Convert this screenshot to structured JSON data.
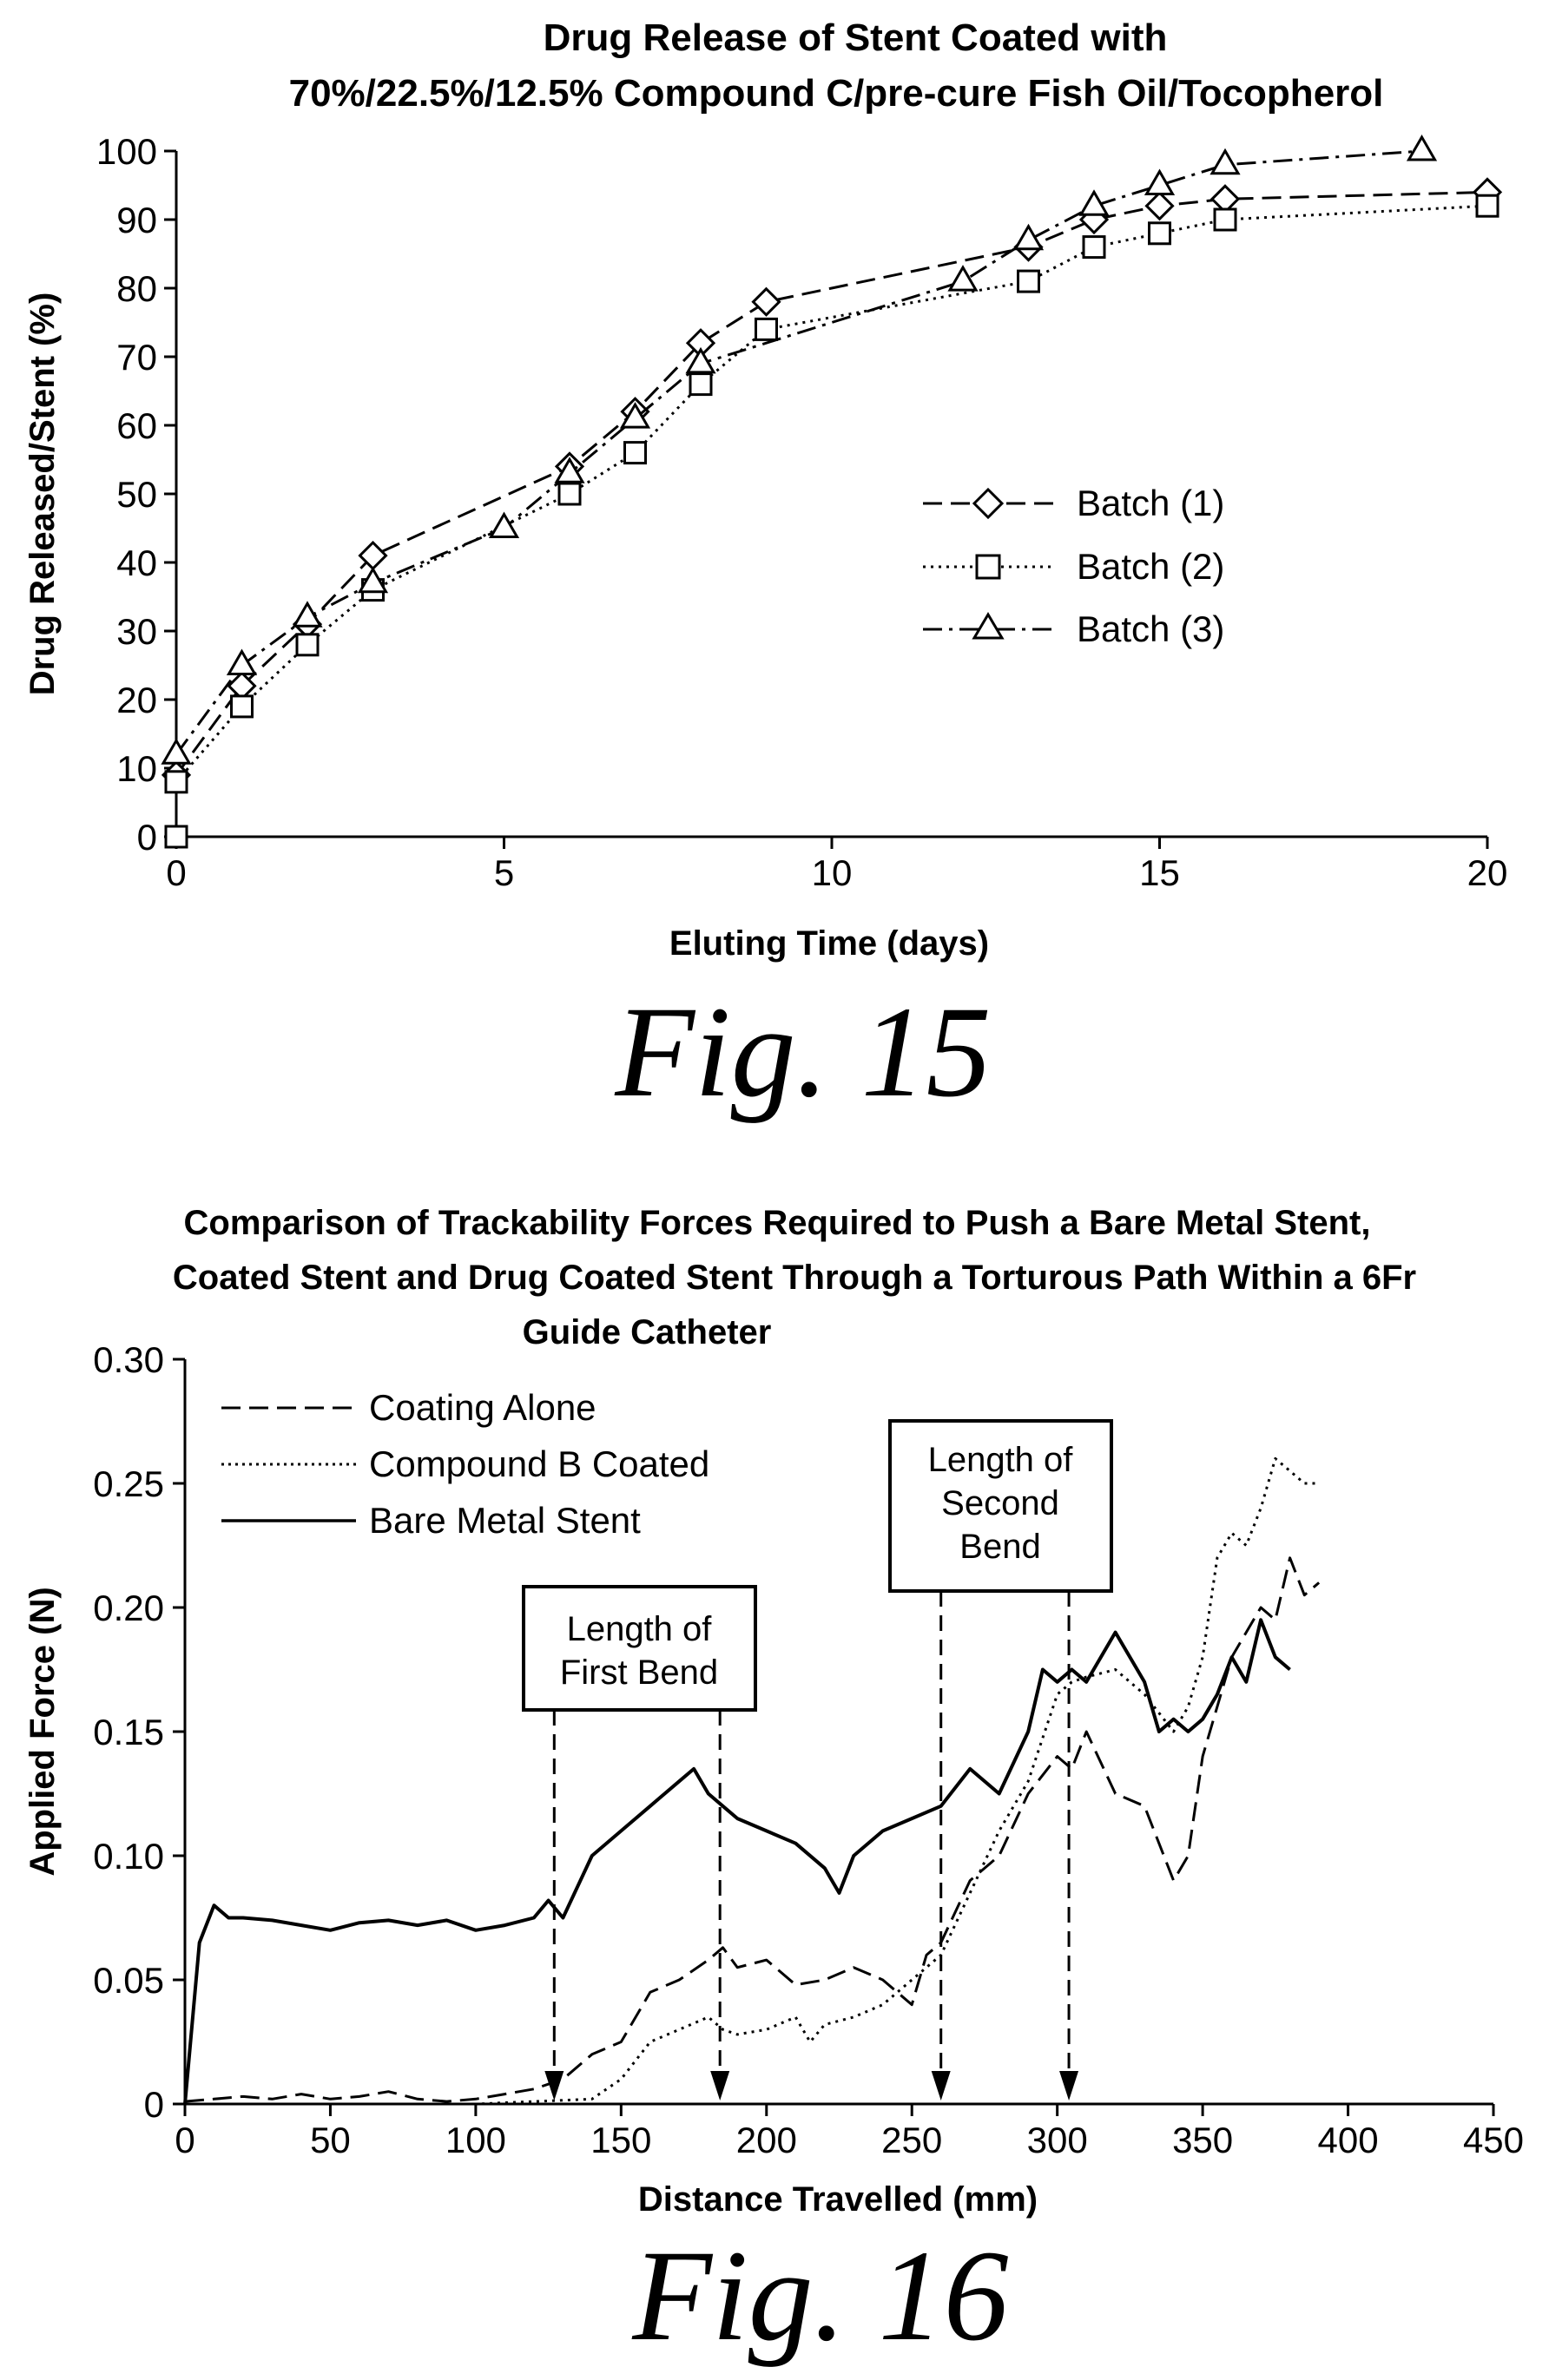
{
  "chart_data": [
    {
      "type": "line",
      "title_line1": "Drug Release of Stent Coated with",
      "title_line2": "70%/22.5%/12.5% Compound C/pre-cure Fish Oil/Tocopherol",
      "xlabel": "Eluting Time (days)",
      "ylabel": "Drug Released/Stent (%)",
      "xlim": [
        0,
        20
      ],
      "ylim": [
        0,
        100
      ],
      "xticks": [
        0,
        5,
        10,
        15,
        20
      ],
      "yticks": [
        0,
        10,
        20,
        30,
        40,
        50,
        60,
        70,
        80,
        90,
        100
      ],
      "legend_position": "center-right",
      "figure_label": "Fig. 15",
      "series": [
        {
          "name": "Batch (1)",
          "marker": "diamond",
          "dash": "dashed",
          "x": [
            0,
            1,
            2,
            3,
            6,
            7,
            8,
            9,
            13,
            14,
            15,
            16,
            20
          ],
          "y": [
            9,
            22,
            31,
            41,
            54,
            62,
            72,
            78,
            86,
            90,
            92,
            93,
            94
          ]
        },
        {
          "name": "Batch (2)",
          "marker": "square",
          "dash": "dotted",
          "x": [
            0,
            0,
            1,
            2,
            3,
            6,
            7,
            8,
            9,
            13,
            14,
            15,
            16,
            20
          ],
          "y": [
            0,
            8,
            19,
            28,
            36,
            50,
            56,
            66,
            74,
            81,
            86,
            88,
            90,
            92
          ]
        },
        {
          "name": "Batch (3)",
          "marker": "triangle",
          "dash": "dashdot",
          "x": [
            0,
            1,
            2,
            3,
            5,
            6,
            7,
            8,
            12,
            13,
            14,
            15,
            16,
            19
          ],
          "y": [
            12,
            25,
            32,
            37,
            45,
            53,
            61,
            69,
            81,
            87,
            92,
            95,
            98,
            100
          ]
        }
      ]
    },
    {
      "type": "line",
      "title_line1": "Comparison of Trackability Forces Required to Push a Bare Metal Stent,",
      "title_line2": "Coated Stent and Drug Coated Stent Through a Torturous Path Within a 6Fr",
      "title_line3": "Guide Catheter",
      "xlabel": "Distance Travelled (mm)",
      "ylabel": "Applied Force (N)",
      "xlim": [
        0,
        450
      ],
      "ylim": [
        0,
        0.3
      ],
      "xticks": [
        0,
        50,
        100,
        150,
        200,
        250,
        300,
        350,
        400,
        450
      ],
      "yticks": [
        "0",
        "0.05",
        "0.10",
        "0.15",
        "0.20",
        "0.25",
        "0.30"
      ],
      "legend_position": "top-left",
      "figure_label": "Fig. 16",
      "annotations": [
        {
          "text_line1": "Length of",
          "text_line2": "First Bend",
          "arrows_x": [
            127,
            184
          ]
        },
        {
          "text_line1": "Length of",
          "text_line2": "Second",
          "text_line3": "Bend",
          "arrows_x": [
            260,
            304
          ]
        }
      ],
      "series": [
        {
          "name": "Coating Alone",
          "dash": "dashed",
          "x": [
            0,
            10,
            20,
            30,
            40,
            50,
            60,
            70,
            80,
            90,
            100,
            110,
            120,
            130,
            140,
            150,
            155,
            160,
            170,
            180,
            185,
            190,
            200,
            210,
            220,
            230,
            240,
            250,
            255,
            260,
            270,
            280,
            290,
            300,
            305,
            310,
            320,
            330,
            340,
            345,
            350,
            360,
            365,
            370,
            375,
            380,
            385,
            390
          ],
          "y": [
            0.001,
            0.002,
            0.003,
            0.002,
            0.004,
            0.002,
            0.003,
            0.005,
            0.002,
            0.001,
            0.002,
            0.004,
            0.006,
            0.01,
            0.02,
            0.025,
            0.035,
            0.045,
            0.05,
            0.058,
            0.063,
            0.055,
            0.058,
            0.048,
            0.05,
            0.055,
            0.05,
            0.04,
            0.06,
            0.065,
            0.09,
            0.1,
            0.125,
            0.14,
            0.135,
            0.15,
            0.125,
            0.12,
            0.09,
            0.1,
            0.14,
            0.18,
            0.19,
            0.2,
            0.195,
            0.22,
            0.205,
            0.21
          ]
        },
        {
          "name": "Compound B Coated",
          "dash": "dotted",
          "x": [
            0,
            100,
            140,
            150,
            160,
            170,
            180,
            185,
            190,
            200,
            210,
            215,
            220,
            230,
            240,
            250,
            260,
            270,
            280,
            290,
            300,
            305,
            310,
            320,
            330,
            340,
            345,
            350,
            355,
            360,
            365,
            370,
            375,
            380,
            385,
            390
          ],
          "y": [
            0,
            0,
            0.002,
            0.01,
            0.025,
            0.03,
            0.035,
            0.03,
            0.028,
            0.03,
            0.035,
            0.025,
            0.032,
            0.035,
            0.04,
            0.05,
            0.06,
            0.085,
            0.11,
            0.13,
            0.165,
            0.17,
            0.172,
            0.175,
            0.165,
            0.15,
            0.16,
            0.18,
            0.22,
            0.23,
            0.225,
            0.24,
            0.26,
            0.255,
            0.25,
            0.25
          ]
        },
        {
          "name": "Bare Metal Stent",
          "dash": "solid",
          "x": [
            0,
            5,
            10,
            15,
            20,
            30,
            40,
            50,
            60,
            70,
            80,
            90,
            100,
            110,
            120,
            125,
            130,
            140,
            150,
            160,
            170,
            175,
            180,
            185,
            190,
            200,
            210,
            220,
            225,
            230,
            240,
            250,
            260,
            270,
            280,
            290,
            295,
            300,
            305,
            310,
            320,
            330,
            335,
            340,
            345,
            350,
            355,
            360,
            365,
            370,
            375,
            380
          ],
          "y": [
            0,
            0.065,
            0.08,
            0.075,
            0.075,
            0.074,
            0.072,
            0.07,
            0.073,
            0.074,
            0.072,
            0.074,
            0.07,
            0.072,
            0.075,
            0.082,
            0.075,
            0.1,
            0.11,
            0.12,
            0.13,
            0.135,
            0.125,
            0.12,
            0.115,
            0.11,
            0.105,
            0.095,
            0.085,
            0.1,
            0.11,
            0.115,
            0.12,
            0.135,
            0.125,
            0.15,
            0.175,
            0.17,
            0.175,
            0.17,
            0.19,
            0.17,
            0.15,
            0.155,
            0.15,
            0.155,
            0.165,
            0.18,
            0.17,
            0.195,
            0.18,
            0.175
          ]
        }
      ]
    }
  ]
}
